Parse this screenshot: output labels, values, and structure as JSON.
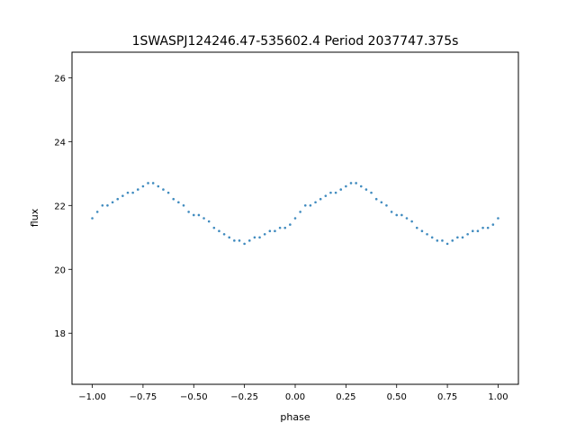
{
  "chart_data": {
    "type": "scatter",
    "title": "1SWASPJ124246.47-535602.4 Period 2037747.375s",
    "xlabel": "phase",
    "ylabel": "flux",
    "xlim": [
      -1.1,
      1.1
    ],
    "ylim": [
      16.4,
      26.8
    ],
    "x_ticks": [
      -1.0,
      -0.75,
      -0.5,
      -0.25,
      0.0,
      0.25,
      0.5,
      0.75,
      1.0
    ],
    "x_tick_labels": [
      "−1.00",
      "−0.75",
      "−0.50",
      "−0.25",
      "0.00",
      "0.25",
      "0.50",
      "0.75",
      "1.00"
    ],
    "y_ticks": [
      18,
      20,
      22,
      24,
      26
    ],
    "y_tick_labels": [
      "18",
      "20",
      "22",
      "24",
      "26"
    ],
    "grid": false,
    "legend": "none",
    "marker_color": "#1f77b4",
    "series": [
      {
        "x": [
          -1.0,
          -0.975,
          -0.95,
          -0.925,
          -0.9,
          -0.875,
          -0.85,
          -0.825,
          -0.8,
          -0.775,
          -0.75,
          -0.725,
          -0.7,
          -0.675,
          -0.65,
          -0.625,
          -0.6,
          -0.575,
          -0.55,
          -0.525,
          -0.5,
          -0.475,
          -0.45,
          -0.425,
          -0.4,
          -0.375,
          -0.35,
          -0.325,
          -0.3,
          -0.275,
          -0.25,
          -0.225,
          -0.2,
          -0.175,
          -0.15,
          -0.125,
          -0.1,
          -0.075,
          -0.05,
          -0.025,
          0.0,
          0.025,
          0.05,
          0.075,
          0.1,
          0.125,
          0.15,
          0.175,
          0.2,
          0.225,
          0.25,
          0.275,
          0.3,
          0.325,
          0.35,
          0.375,
          0.4,
          0.425,
          0.45,
          0.475,
          0.5,
          0.525,
          0.55,
          0.575,
          0.6,
          0.625,
          0.65,
          0.675,
          0.7,
          0.725,
          0.75,
          0.775,
          0.8,
          0.825,
          0.85,
          0.875,
          0.9,
          0.925,
          0.95,
          0.975,
          1.0
        ],
        "y": [
          21.6,
          21.8,
          22.0,
          22.0,
          22.1,
          22.2,
          22.3,
          22.4,
          22.4,
          22.5,
          22.6,
          22.7,
          22.7,
          22.6,
          22.5,
          22.4,
          22.2,
          22.1,
          22.0,
          21.8,
          21.7,
          21.7,
          21.6,
          21.5,
          21.3,
          21.2,
          21.1,
          21.0,
          20.9,
          20.9,
          20.8,
          20.9,
          21.0,
          21.0,
          21.1,
          21.2,
          21.2,
          21.3,
          21.3,
          21.4,
          21.6,
          21.8,
          22.0,
          22.0,
          22.1,
          22.2,
          22.3,
          22.4,
          22.4,
          22.5,
          22.6,
          22.7,
          22.7,
          22.6,
          22.5,
          22.4,
          22.2,
          22.1,
          22.0,
          21.8,
          21.7,
          21.7,
          21.6,
          21.5,
          21.3,
          21.2,
          21.1,
          21.0,
          20.9,
          20.9,
          20.8,
          20.9,
          21.0,
          21.0,
          21.1,
          21.2,
          21.2,
          21.3,
          21.3,
          21.4,
          21.6
        ]
      }
    ]
  }
}
